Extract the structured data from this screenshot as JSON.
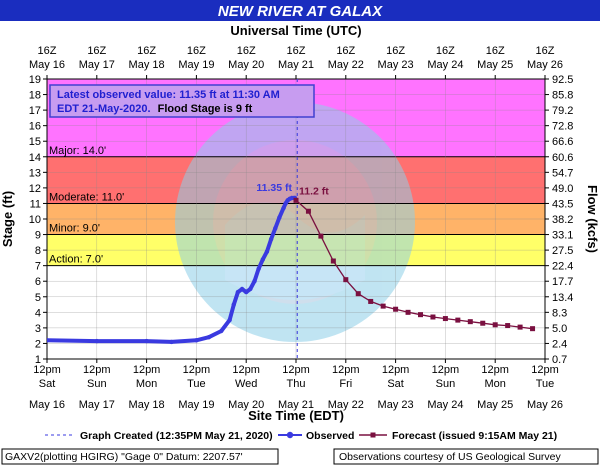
{
  "title": "NEW RIVER AT GALAX",
  "top_axis_title": "Universal Time (UTC)",
  "bottom_axis_title": "Site Time (EDT)",
  "left_axis_title": "Stage (ft)",
  "right_axis_title": "Flow (kcfs)",
  "info_box": {
    "line1": "Latest observed value: 11.35 ft at 11:30 AM",
    "line2a": "EDT 21-May-2020.",
    "line2b": "Flood Stage is 9 ft"
  },
  "legend": {
    "created": "Graph Created (12:35PM May 21, 2020)",
    "observed": "Observed",
    "forecast": "Forecast (issued 9:15AM May 21)"
  },
  "footer": {
    "left": "GAXV2(plotting HGIRG) \"Gage 0\" Datum: 2207.57'",
    "right": "Observations courtesy of US Geological Survey"
  },
  "colors": {
    "title_bg": "#1a2dbf",
    "major": "#ff00ff",
    "moderate": "#ff5757",
    "minor": "#ffa64d",
    "action": "#ffff4d",
    "observed": "#3a3ae0",
    "forecast": "#7a1040"
  },
  "chart_data": {
    "type": "line",
    "x_unit": "hours since 12pm May 16 (EDT)",
    "y_left": {
      "label": "Stage (ft)",
      "range": [
        1,
        19
      ],
      "ticks": [
        1,
        2,
        3,
        4,
        5,
        6,
        7,
        8,
        9,
        10,
        11,
        12,
        13,
        14,
        15,
        16,
        17,
        18,
        19
      ]
    },
    "y_right": {
      "label": "Flow (kcfs)",
      "ticks": [
        "0.7",
        "2.4",
        "5.0",
        "8.3",
        "13.4",
        "17.7",
        "22.4",
        "27.5",
        "33.1",
        "38.2",
        "43.5",
        "49.0",
        "54.7",
        "60.6",
        "66.6",
        "72.8",
        "79.2",
        "85.8",
        "92.5"
      ]
    },
    "x_range": [
      0,
      240
    ],
    "top_ticks": [
      {
        "t1": "16Z",
        "t2": "May 16"
      },
      {
        "t1": "16Z",
        "t2": "May 17"
      },
      {
        "t1": "16Z",
        "t2": "May 18"
      },
      {
        "t1": "16Z",
        "t2": "May 19"
      },
      {
        "t1": "16Z",
        "t2": "May 20"
      },
      {
        "t1": "16Z",
        "t2": "May 21"
      },
      {
        "t1": "16Z",
        "t2": "May 22"
      },
      {
        "t1": "16Z",
        "t2": "May 23"
      },
      {
        "t1": "16Z",
        "t2": "May 24"
      },
      {
        "t1": "16Z",
        "t2": "May 25"
      },
      {
        "t1": "16Z",
        "t2": "May 26"
      }
    ],
    "bottom_ticks": [
      {
        "t1": "12pm",
        "t2": "Sat",
        "t3": "May 16"
      },
      {
        "t1": "12pm",
        "t2": "Sun",
        "t3": "May 17"
      },
      {
        "t1": "12pm",
        "t2": "Mon",
        "t3": "May 18"
      },
      {
        "t1": "12pm",
        "t2": "Tue",
        "t3": "May 19"
      },
      {
        "t1": "12pm",
        "t2": "Wed",
        "t3": "May 20"
      },
      {
        "t1": "12pm",
        "t2": "Thu",
        "t3": "May 21"
      },
      {
        "t1": "12pm",
        "t2": "Fri",
        "t3": "May 22"
      },
      {
        "t1": "12pm",
        "t2": "Sat",
        "t3": "May 23"
      },
      {
        "t1": "12pm",
        "t2": "Sun",
        "t3": "May 24"
      },
      {
        "t1": "12pm",
        "t2": "Mon",
        "t3": "May 25"
      },
      {
        "t1": "12pm",
        "t2": "Tue",
        "t3": "May 26"
      }
    ],
    "flood_categories": [
      {
        "name": "Major",
        "label": "Major: 14.0'",
        "from": 14,
        "to": 19,
        "color": "#ff00ff"
      },
      {
        "name": "Moderate",
        "label": "Moderate: 11.0'",
        "from": 11,
        "to": 14,
        "color": "#ff5757"
      },
      {
        "name": "Minor",
        "label": "Minor: 9.0'",
        "from": 9,
        "to": 11,
        "color": "#ffa64d"
      },
      {
        "name": "Action",
        "label": "Action: 7.0'",
        "from": 7,
        "to": 9,
        "color": "#ffff4d"
      }
    ],
    "graph_created_x": 120.6,
    "observed": {
      "name": "Observed",
      "x": [
        0,
        24,
        48,
        60,
        72,
        78,
        84,
        88,
        90,
        92,
        94,
        96,
        98,
        100,
        102,
        104,
        106,
        108,
        110,
        112,
        114,
        115,
        116,
        117,
        118,
        119,
        119.5
      ],
      "y": [
        2.2,
        2.15,
        2.15,
        2.1,
        2.2,
        2.4,
        2.8,
        3.5,
        4.5,
        5.3,
        5.5,
        5.3,
        5.5,
        6.0,
        6.8,
        7.4,
        7.9,
        8.7,
        9.4,
        10.1,
        10.7,
        11.0,
        11.2,
        11.3,
        11.35,
        11.35,
        11.35
      ],
      "annotation": "11.35 ft"
    },
    "forecast": {
      "name": "Forecast",
      "x": [
        120,
        126,
        132,
        138,
        144,
        150,
        156,
        162,
        168,
        174,
        180,
        186,
        192,
        198,
        204,
        210,
        216,
        222,
        228,
        234
      ],
      "y": [
        11.2,
        10.5,
        8.9,
        7.3,
        6.1,
        5.2,
        4.7,
        4.4,
        4.2,
        4.0,
        3.85,
        3.7,
        3.6,
        3.5,
        3.4,
        3.3,
        3.2,
        3.15,
        3.05,
        2.95
      ],
      "annotation": "11.2 ft"
    }
  }
}
